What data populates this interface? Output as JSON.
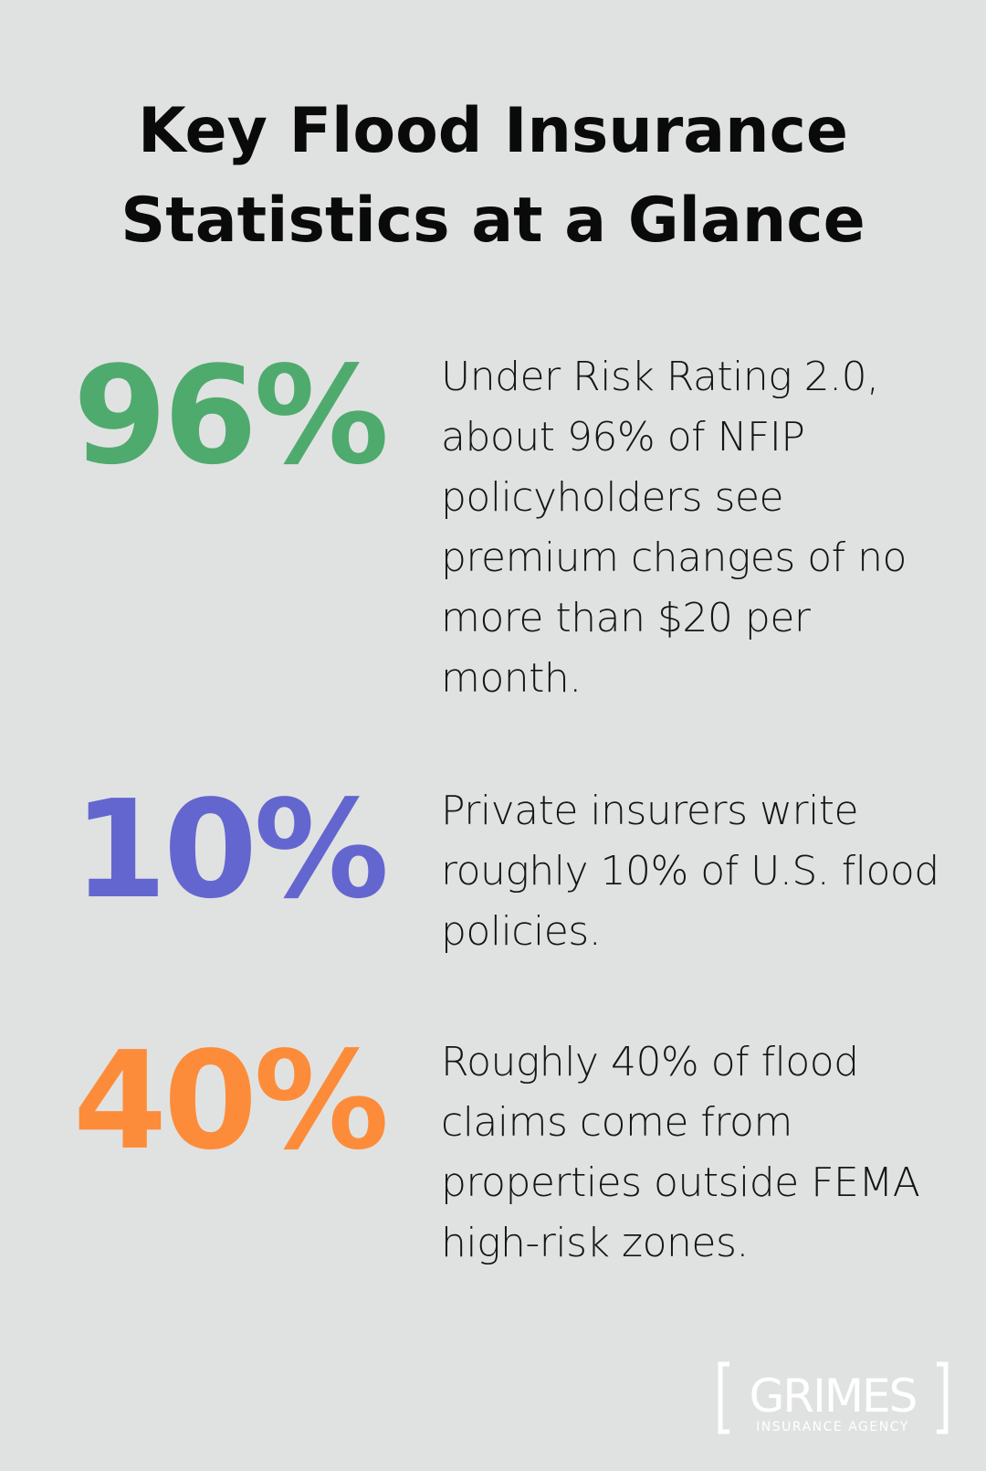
{
  "title": "Key Flood Insurance Statistics at a Glance",
  "stats": [
    {
      "value": "96%",
      "color": "#4faa6e",
      "text": "Under Risk Rating 2.0, about 96% of NFIP policyholders see premium changes of no more than $20 per month."
    },
    {
      "value": "10%",
      "color": "#6466cf",
      "text": "Private insurers write roughly 10% of U.S. flood policies."
    },
    {
      "value": "40%",
      "color": "#fd8c3a",
      "text": "Roughly 40% of flood claims come from properties outside FEMA high-risk zones."
    }
  ],
  "logo": {
    "name": "GRIMES",
    "tagline": "INSURANCE AGENCY"
  }
}
